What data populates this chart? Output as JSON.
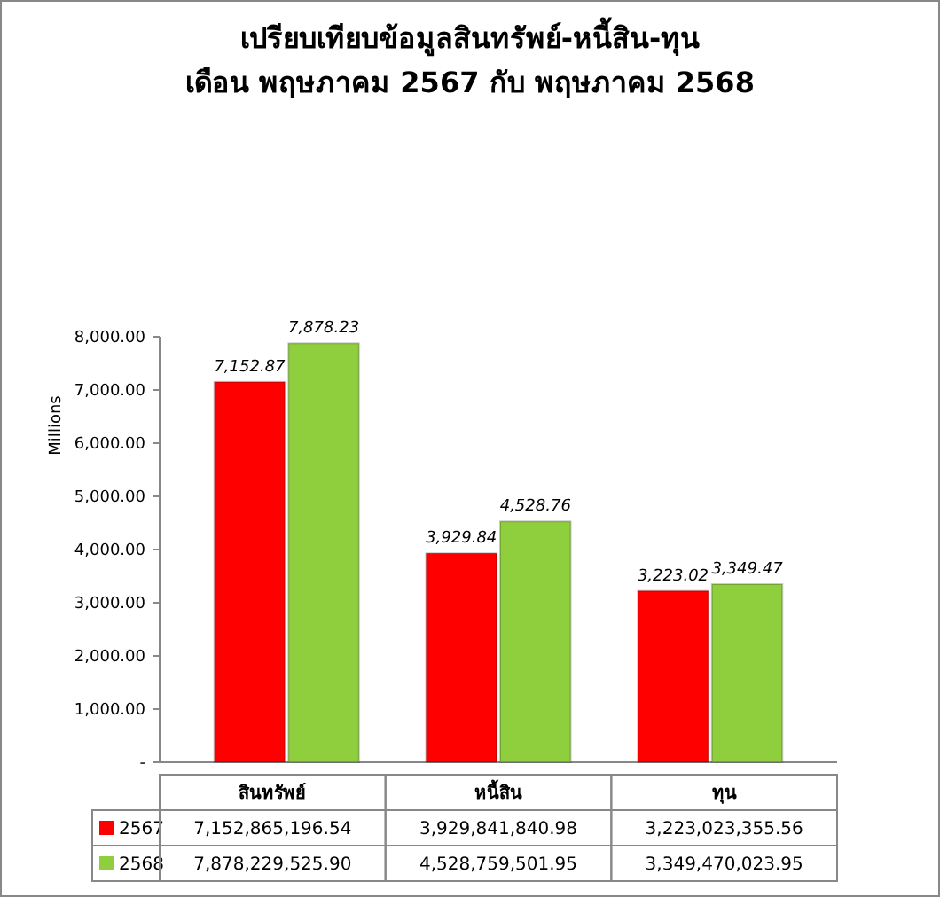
{
  "chart_data": {
    "type": "bar",
    "title": "เปรียบเทียบข้อมูลสินทรัพย์-หนี้สิน-ทุน",
    "subtitle": "เดือน พฤษภาคม 2567 กับ พฤษภาคม 2568",
    "ylabel": "Millions",
    "categories": [
      "สินทรัพย์",
      "หนี้สิน",
      "ทุน"
    ],
    "series": [
      {
        "name": "2567",
        "color": "#ff0000",
        "values": [
          7152.87,
          3929.84,
          3223.02
        ],
        "value_labels": [
          "7,152.87",
          "3,929.84",
          "3,223.02"
        ]
      },
      {
        "name": "2568",
        "color": "#8fce3c",
        "values": [
          7878.23,
          4528.76,
          3349.47
        ],
        "value_labels": [
          "7,878.23",
          "4,528.76",
          "3,349.47"
        ]
      }
    ],
    "ylim": [
      0,
      8000
    ],
    "yticks": [
      {
        "value": 0,
        "label": "-"
      },
      {
        "value": 1000,
        "label": "1,000.00"
      },
      {
        "value": 2000,
        "label": "2,000.00"
      },
      {
        "value": 3000,
        "label": "3,000.00"
      },
      {
        "value": 4000,
        "label": "4,000.00"
      },
      {
        "value": 5000,
        "label": "5,000.00"
      },
      {
        "value": 6000,
        "label": "6,000.00"
      },
      {
        "value": 7000,
        "label": "7,000.00"
      },
      {
        "value": 8000,
        "label": "8,000.00"
      }
    ],
    "grid": false,
    "legend": "bottom",
    "annotations": [
      "7,152,865,196.54",
      "3,929,841,840.98",
      "3,223,023,355.56",
      "7,878,229,525.90",
      "4,528,759,501.95",
      "3,349,470,023.95"
    ]
  }
}
